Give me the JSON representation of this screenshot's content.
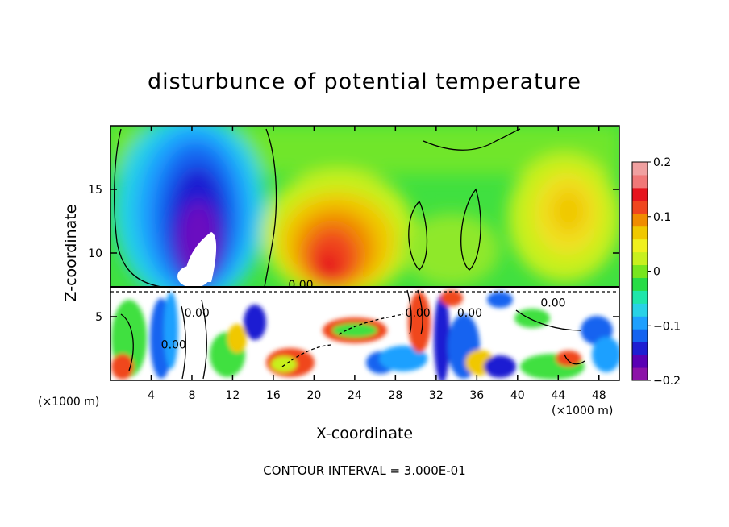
{
  "chart_data": {
    "type": "heatmap",
    "title": "disturbunce of potential temperature",
    "xlabel": "X-coordinate",
    "ylabel": "Z-coordinate",
    "x_unit": "(×1000 m)",
    "xlim": [
      0,
      50
    ],
    "ylim": [
      0,
      20
    ],
    "x_ticks": [
      4,
      8,
      12,
      16,
      20,
      24,
      28,
      32,
      36,
      40,
      44,
      48
    ],
    "y_ticks": [
      5,
      10,
      15
    ],
    "colorbar": {
      "range": [
        -0.2,
        0.2
      ],
      "labels": [
        {
          "value": 0.2,
          "text": "0.2"
        },
        {
          "value": 0.1,
          "text": "0.1"
        },
        {
          "value": 0.0,
          "text": "0"
        },
        {
          "value": -0.1,
          "text": "−0.1"
        },
        {
          "value": -0.2,
          "text": "−0.2"
        }
      ],
      "colors": [
        "#8c12a8",
        "#5a00b4",
        "#1e1ed2",
        "#1464f0",
        "#1ea0ff",
        "#28d2e6",
        "#1ee6aa",
        "#28dc46",
        "#78e61e",
        "#c8f01e",
        "#f0f01e",
        "#f0c800",
        "#f08c00",
        "#f0461e",
        "#e6141e",
        "#f07878",
        "#f0a0a0"
      ]
    },
    "contour_labels": [
      {
        "x": 18.7,
        "y": 7.2,
        "text": "0.00"
      },
      {
        "x": 6.2,
        "y": 2.5,
        "text": "0.00"
      },
      {
        "x": 8.5,
        "y": 5.0,
        "text": "0.00"
      },
      {
        "x": 43.5,
        "y": 5.8,
        "text": "0.00"
      },
      {
        "x": 30.2,
        "y": 5.0,
        "text": "0.00"
      },
      {
        "x": 35.3,
        "y": 5.0,
        "text": "0.00"
      }
    ],
    "features": [
      {
        "name": "cold-anomaly",
        "x": 8.5,
        "y": 14,
        "value": -0.2
      },
      {
        "name": "warm-anomaly",
        "x": 21.5,
        "y": 10.5,
        "value": 0.15
      },
      {
        "name": "warm-anomaly-right",
        "x": 44.5,
        "y": 13,
        "value": 0.07
      }
    ],
    "contour_interval_text": "CONTOUR INTERVAL = 3.000E-01"
  }
}
